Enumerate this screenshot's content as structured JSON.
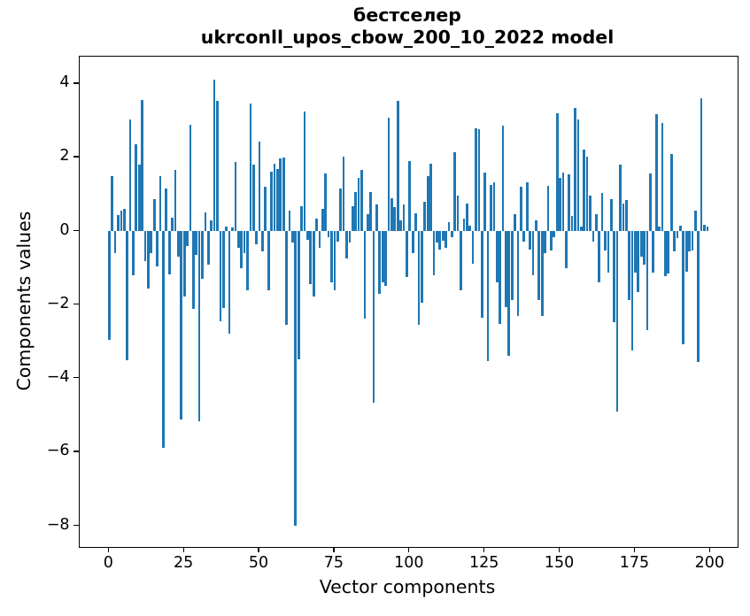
{
  "chart_data": {
    "type": "bar",
    "title": "бестселер",
    "subtitle": "ukrconll_upos_cbow_200_10_2022 model",
    "xlabel": "Vector components",
    "ylabel": "Components values",
    "bar_color": "#1f77b4",
    "spine_color": "#000000",
    "grid": false,
    "legend": null,
    "x_range": [
      0,
      199
    ],
    "n_bars": 200,
    "bar_width_units": 0.8,
    "xticks": [
      0,
      25,
      50,
      75,
      100,
      125,
      150,
      175,
      200
    ],
    "yticks": [
      4,
      2,
      0,
      -2,
      -4,
      -6,
      -8
    ],
    "xlim": [
      -9.95,
      208.95
    ],
    "ylim": [
      -8.57,
      4.75
    ],
    "values": [
      -2.94,
      1.5,
      -0.6,
      0.45,
      0.55,
      0.6,
      -3.5,
      3.03,
      -1.2,
      2.36,
      1.8,
      3.57,
      -0.8,
      -1.55,
      -0.6,
      0.87,
      -0.95,
      1.5,
      -5.88,
      1.16,
      -1.17,
      0.38,
      1.67,
      -0.7,
      -5.12,
      -1.78,
      -0.4,
      2.9,
      -2.1,
      -0.65,
      -5.16,
      -1.3,
      0.51,
      -0.9,
      0.3,
      4.12,
      3.54,
      -2.45,
      -2.08,
      0.12,
      -2.77,
      0.1,
      1.89,
      -0.45,
      -1.0,
      -0.6,
      -1.6,
      3.48,
      1.8,
      -0.35,
      2.43,
      -0.54,
      1.22,
      -1.6,
      1.61,
      1.84,
      1.7,
      1.97,
      2.01,
      -2.55,
      0.55,
      -0.3,
      -7.99,
      -3.48,
      0.68,
      3.25,
      -0.22,
      -1.43,
      -1.78,
      0.34,
      -0.44,
      0.6,
      1.56,
      -0.15,
      -1.39,
      -1.6,
      -0.28,
      1.16,
      2.03,
      -0.74,
      -0.3,
      0.68,
      1.07,
      1.46,
      1.67,
      -2.38,
      0.47,
      1.07,
      -4.66,
      0.72,
      -1.69,
      -1.39,
      -1.47,
      3.08,
      0.89,
      0.65,
      3.55,
      0.3,
      0.73,
      -1.25,
      1.9,
      -0.6,
      0.5,
      -2.53,
      -1.95,
      0.8,
      1.51,
      1.84,
      -1.2,
      -0.3,
      -0.5,
      -0.25,
      -0.45,
      0.25,
      -0.15,
      2.15,
      0.97,
      -1.6,
      0.34,
      0.75,
      0.16,
      -0.87,
      2.8,
      2.77,
      -2.34,
      1.59,
      -3.53,
      1.25,
      1.33,
      -1.39,
      -2.51,
      2.88,
      -2.05,
      -3.37,
      -1.86,
      0.47,
      -2.29,
      1.2,
      -0.27,
      1.33,
      -0.5,
      -1.2,
      0.29,
      -1.86,
      -2.29,
      -0.6,
      1.24,
      -0.52,
      -0.15,
      3.21,
      1.46,
      1.59,
      -1.0,
      1.54,
      0.42,
      3.35,
      3.03,
      0.13,
      2.23,
      2.03,
      0.97,
      -0.27,
      0.47,
      -1.39,
      1.05,
      -0.53,
      -1.13,
      0.87,
      -2.47,
      -4.9,
      1.8,
      0.75,
      0.85,
      -1.86,
      -3.24,
      -1.13,
      -1.65,
      -0.7,
      -0.91,
      -2.68,
      1.56,
      -1.13,
      3.17,
      0.13,
      2.95,
      -1.22,
      -1.15,
      2.1,
      -0.55,
      -0.18,
      0.16,
      -3.06,
      -1.1,
      -0.55,
      -0.53,
      0.55,
      -3.56,
      3.61,
      0.17,
      0.12
    ]
  }
}
